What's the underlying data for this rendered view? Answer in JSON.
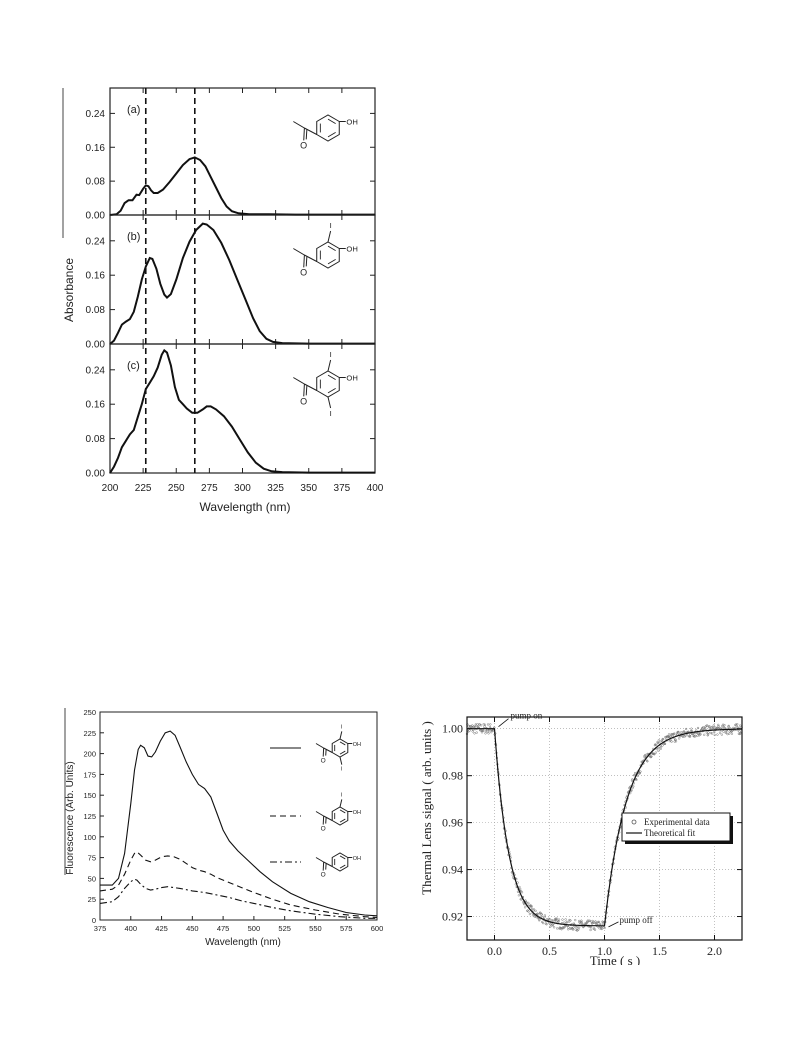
{
  "chart_data": [
    {
      "type": "line",
      "xlabel": "Wavelength (nm)",
      "ylabel": "Absorbance",
      "xlim": [
        200,
        400
      ],
      "x_ticks": [
        "200",
        "225",
        "250",
        "275",
        "300",
        "325",
        "350",
        "375",
        "400"
      ],
      "y_ticks": [
        "0.00",
        "0.08",
        "0.16",
        "0.24"
      ],
      "ylim": [
        0,
        0.3
      ],
      "vertical_dashed_lines": [
        227,
        264
      ],
      "panels": [
        {
          "label": "(a)",
          "molecule": {
            "substituents": [
              "OH"
            ]
          },
          "series": [
            {
              "points": [
                [
                  200,
                  0
                ],
                [
                  205,
                  0.002
                ],
                [
                  208,
                  0.01
                ],
                [
                  211,
                  0.028
                ],
                [
                  214,
                  0.035
                ],
                [
                  217,
                  0.035
                ],
                [
                  220,
                  0.048
                ],
                [
                  222,
                  0.047
                ],
                [
                  225,
                  0.062
                ],
                [
                  227,
                  0.07
                ],
                [
                  229,
                  0.068
                ],
                [
                  231,
                  0.058
                ],
                [
                  233,
                  0.052
                ],
                [
                  236,
                  0.052
                ],
                [
                  240,
                  0.06
                ],
                [
                  245,
                  0.078
                ],
                [
                  250,
                  0.098
                ],
                [
                  255,
                  0.118
                ],
                [
                  260,
                  0.132
                ],
                [
                  264,
                  0.136
                ],
                [
                  268,
                  0.13
                ],
                [
                  272,
                  0.115
                ],
                [
                  276,
                  0.09
                ],
                [
                  280,
                  0.065
                ],
                [
                  284,
                  0.04
                ],
                [
                  288,
                  0.02
                ],
                [
                  292,
                  0.009
                ],
                [
                  297,
                  0.004
                ],
                [
                  305,
                  0.002
                ],
                [
                  320,
                  0.002
                ],
                [
                  340,
                  0.001
                ],
                [
                  370,
                  0.001
                ],
                [
                  400,
                  0.001
                ]
              ]
            }
          ]
        },
        {
          "label": "(b)",
          "molecule": {
            "substituents": [
              "I",
              "OH"
            ]
          },
          "series": [
            {
              "points": [
                [
                  200,
                  0
                ],
                [
                  203,
                  0.008
                ],
                [
                  206,
                  0.026
                ],
                [
                  209,
                  0.045
                ],
                [
                  212,
                  0.052
                ],
                [
                  215,
                  0.058
                ],
                [
                  218,
                  0.075
                ],
                [
                  221,
                  0.11
                ],
                [
                  224,
                  0.15
                ],
                [
                  227,
                  0.18
                ],
                [
                  230,
                  0.2
                ],
                [
                  232,
                  0.198
                ],
                [
                  235,
                  0.175
                ],
                [
                  238,
                  0.14
                ],
                [
                  241,
                  0.115
                ],
                [
                  243,
                  0.108
                ],
                [
                  246,
                  0.116
                ],
                [
                  250,
                  0.15
                ],
                [
                  255,
                  0.2
                ],
                [
                  260,
                  0.238
                ],
                [
                  265,
                  0.265
                ],
                [
                  270,
                  0.28
                ],
                [
                  273,
                  0.278
                ],
                [
                  278,
                  0.265
                ],
                [
                  284,
                  0.235
                ],
                [
                  290,
                  0.195
                ],
                [
                  296,
                  0.15
                ],
                [
                  302,
                  0.105
                ],
                [
                  308,
                  0.06
                ],
                [
                  313,
                  0.03
                ],
                [
                  318,
                  0.012
                ],
                [
                  323,
                  0.005
                ],
                [
                  330,
                  0.002
                ],
                [
                  350,
                  0.001
                ],
                [
                  400,
                  0.001
                ]
              ]
            }
          ]
        },
        {
          "label": "(c)",
          "molecule": {
            "substituents": [
              "I",
              "OH",
              "I"
            ]
          },
          "series": [
            {
              "points": [
                [
                  200,
                  0
                ],
                [
                  203,
                  0.015
                ],
                [
                  206,
                  0.035
                ],
                [
                  209,
                  0.06
                ],
                [
                  212,
                  0.075
                ],
                [
                  215,
                  0.09
                ],
                [
                  218,
                  0.1
                ],
                [
                  221,
                  0.13
                ],
                [
                  224,
                  0.16
                ],
                [
                  227,
                  0.195
                ],
                [
                  230,
                  0.21
                ],
                [
                  233,
                  0.225
                ],
                [
                  236,
                  0.245
                ],
                [
                  239,
                  0.275
                ],
                [
                  241,
                  0.285
                ],
                [
                  243,
                  0.28
                ],
                [
                  246,
                  0.25
                ],
                [
                  249,
                  0.2
                ],
                [
                  252,
                  0.17
                ],
                [
                  255,
                  0.16
                ],
                [
                  258,
                  0.15
                ],
                [
                  262,
                  0.14
                ],
                [
                  266,
                  0.14
                ],
                [
                  270,
                  0.148
                ],
                [
                  273,
                  0.155
                ],
                [
                  276,
                  0.155
                ],
                [
                  280,
                  0.148
                ],
                [
                  286,
                  0.132
                ],
                [
                  292,
                  0.108
                ],
                [
                  298,
                  0.078
                ],
                [
                  304,
                  0.048
                ],
                [
                  310,
                  0.024
                ],
                [
                  316,
                  0.01
                ],
                [
                  322,
                  0.004
                ],
                [
                  330,
                  0.002
                ],
                [
                  350,
                  0.001
                ],
                [
                  400,
                  0.001
                ]
              ]
            }
          ]
        }
      ]
    },
    {
      "type": "line",
      "xlabel": "Wavelength (nm)",
      "ylabel": "Fluorescence (Arb. Units)",
      "xlim": [
        375,
        600
      ],
      "ylim": [
        0,
        250
      ],
      "x_ticks": [
        "375",
        "400",
        "425",
        "450",
        "475",
        "500",
        "525",
        "550",
        "575",
        "600"
      ],
      "y_ticks": [
        "0",
        "25",
        "50",
        "75",
        "100",
        "125",
        "150",
        "175",
        "200",
        "225",
        "250"
      ],
      "legend_molecules": [
        [
          "I",
          "OH",
          "I"
        ],
        [
          "I",
          "OH"
        ],
        [
          "OH"
        ]
      ],
      "series": [
        {
          "style": "solid",
          "points": [
            [
              375,
              42
            ],
            [
              385,
              42
            ],
            [
              390,
              50
            ],
            [
              395,
              80
            ],
            [
              400,
              140
            ],
            [
              403,
              180
            ],
            [
              406,
              205
            ],
            [
              408,
              210
            ],
            [
              411,
              207
            ],
            [
              414,
              197
            ],
            [
              417,
              196
            ],
            [
              420,
              202
            ],
            [
              424,
              215
            ],
            [
              428,
              225
            ],
            [
              432,
              227
            ],
            [
              436,
              222
            ],
            [
              440,
              208
            ],
            [
              445,
              190
            ],
            [
              450,
              175
            ],
            [
              455,
              163
            ],
            [
              460,
              158
            ],
            [
              465,
              148
            ],
            [
              470,
              128
            ],
            [
              475,
              108
            ],
            [
              480,
              95
            ],
            [
              487,
              83
            ],
            [
              495,
              72
            ],
            [
              505,
              58
            ],
            [
              515,
              46
            ],
            [
              530,
              32
            ],
            [
              545,
              22
            ],
            [
              560,
              15
            ],
            [
              575,
              9
            ],
            [
              590,
              6
            ],
            [
              600,
              5
            ]
          ]
        },
        {
          "style": "dashed",
          "points": [
            [
              375,
              35
            ],
            [
              385,
              37
            ],
            [
              390,
              42
            ],
            [
              395,
              55
            ],
            [
              400,
              72
            ],
            [
              403,
              80
            ],
            [
              405,
              82
            ],
            [
              408,
              78
            ],
            [
              412,
              72
            ],
            [
              416,
              70
            ],
            [
              420,
              72
            ],
            [
              425,
              76
            ],
            [
              430,
              77
            ],
            [
              435,
              76
            ],
            [
              440,
              73
            ],
            [
              445,
              68
            ],
            [
              450,
              63
            ],
            [
              455,
              60
            ],
            [
              460,
              58
            ],
            [
              465,
              55
            ],
            [
              470,
              51
            ],
            [
              480,
              45
            ],
            [
              490,
              39
            ],
            [
              500,
              33
            ],
            [
              515,
              25
            ],
            [
              530,
              18
            ],
            [
              550,
              12
            ],
            [
              570,
              7
            ],
            [
              590,
              4
            ],
            [
              600,
              3
            ]
          ]
        },
        {
          "style": "dashdot",
          "points": [
            [
              375,
              20
            ],
            [
              385,
              22
            ],
            [
              390,
              28
            ],
            [
              395,
              38
            ],
            [
              400,
              46
            ],
            [
              403,
              49
            ],
            [
              405,
              48
            ],
            [
              408,
              43
            ],
            [
              412,
              38
            ],
            [
              416,
              36
            ],
            [
              420,
              37
            ],
            [
              425,
              39
            ],
            [
              430,
              40
            ],
            [
              435,
              39
            ],
            [
              440,
              38
            ],
            [
              450,
              35
            ],
            [
              460,
              33
            ],
            [
              470,
              30
            ],
            [
              480,
              27
            ],
            [
              490,
              23
            ],
            [
              500,
              20
            ],
            [
              515,
              15
            ],
            [
              530,
              11
            ],
            [
              550,
              7
            ],
            [
              570,
              4
            ],
            [
              590,
              2
            ],
            [
              600,
              2
            ]
          ]
        }
      ]
    },
    {
      "type": "scatter",
      "xlabel": "Time ( s )",
      "ylabel": "Thermal Lens signal ( arb. units )",
      "xlim": [
        -0.25,
        2.25
      ],
      "ylim": [
        0.91,
        1.005
      ],
      "x_ticks": [
        "0.0",
        "0.5",
        "1.0",
        "1.5",
        "2.0"
      ],
      "y_ticks": [
        "0.92",
        "0.94",
        "0.96",
        "0.98",
        "1.00"
      ],
      "grid": true,
      "legend": [
        "Experimental data",
        "Theoretical fit"
      ],
      "legend_position": "center-right",
      "annotations": [
        {
          "text": "pump on",
          "x": 0.0,
          "y": 1.0
        },
        {
          "text": "pump off",
          "x": 1.0,
          "y": 0.916
        }
      ],
      "model": {
        "baseline": 1.0,
        "pump_on_time": 0.0,
        "pump_off_time": 1.0,
        "min_level": 0.916,
        "decay_tau": 0.13,
        "recovery_tau": 0.2,
        "noise": 0.0022
      }
    }
  ]
}
